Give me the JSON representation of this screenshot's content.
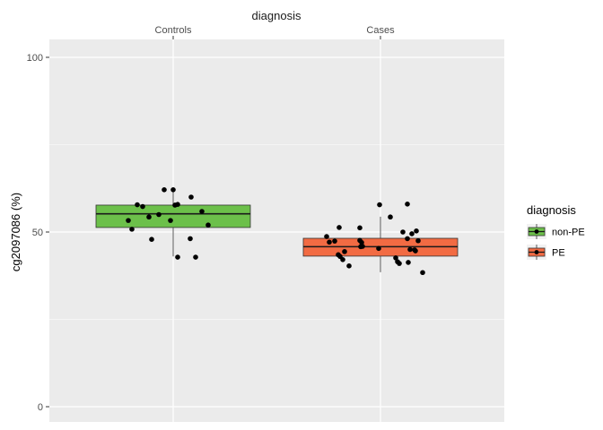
{
  "chart_data": {
    "type": "box",
    "title": "diagnosis",
    "ylabel": "cg2097086 (%)",
    "ylim": [
      0,
      100
    ],
    "yticks": [
      0,
      50,
      100
    ],
    "categories": [
      "Controls",
      "Cases"
    ],
    "legend": {
      "title": "diagnosis",
      "position": "right",
      "entries": [
        {
          "label": "non-PE",
          "color": "#6CC04A"
        },
        {
          "label": "PE",
          "color": "#F26B43"
        }
      ]
    },
    "series": [
      {
        "category": "Controls",
        "group": "non-PE",
        "color": "#6CC04A",
        "box": {
          "min": 43.0,
          "q1": 51.3,
          "median": 55.2,
          "q3": 57.7,
          "max": 61.9
        },
        "points": [
          {
            "j": -0.5,
            "y": 53.3
          },
          {
            "j": -0.46,
            "y": 50.8
          },
          {
            "j": -0.4,
            "y": 57.8
          },
          {
            "j": -0.34,
            "y": 57.3
          },
          {
            "j": -0.27,
            "y": 54.3
          },
          {
            "j": -0.24,
            "y": 47.9
          },
          {
            "j": -0.16,
            "y": 55.0
          },
          {
            "j": -0.1,
            "y": 62.1
          },
          {
            "j": -0.03,
            "y": 53.3
          },
          {
            "j": 0.0,
            "y": 62.1
          },
          {
            "j": 0.02,
            "y": 57.7
          },
          {
            "j": 0.05,
            "y": 57.9
          },
          {
            "j": 0.05,
            "y": 42.8
          },
          {
            "j": 0.19,
            "y": 48.1
          },
          {
            "j": 0.2,
            "y": 60.0
          },
          {
            "j": 0.25,
            "y": 42.8
          },
          {
            "j": 0.32,
            "y": 55.9
          },
          {
            "j": 0.39,
            "y": 52.0
          }
        ]
      },
      {
        "category": "Cases",
        "group": "PE",
        "color": "#F26B43",
        "box": {
          "min": 38.5,
          "q1": 43.1,
          "median": 45.8,
          "q3": 48.2,
          "max": 54.4
        },
        "points": [
          {
            "j": -0.6,
            "y": 48.7
          },
          {
            "j": -0.57,
            "y": 47.1
          },
          {
            "j": -0.51,
            "y": 47.4
          },
          {
            "j": -0.47,
            "y": 43.5
          },
          {
            "j": -0.46,
            "y": 51.3
          },
          {
            "j": -0.45,
            "y": 43.0
          },
          {
            "j": -0.42,
            "y": 42.1
          },
          {
            "j": -0.4,
            "y": 44.4
          },
          {
            "j": -0.35,
            "y": 40.3
          },
          {
            "j": -0.23,
            "y": 51.2
          },
          {
            "j": -0.23,
            "y": 47.6
          },
          {
            "j": -0.22,
            "y": 45.8
          },
          {
            "j": -0.21,
            "y": 47.0
          },
          {
            "j": -0.2,
            "y": 45.9
          },
          {
            "j": -0.02,
            "y": 45.3
          },
          {
            "j": -0.01,
            "y": 57.8
          },
          {
            "j": 0.11,
            "y": 54.3
          },
          {
            "j": 0.17,
            "y": 42.6
          },
          {
            "j": 0.19,
            "y": 41.5
          },
          {
            "j": 0.21,
            "y": 41.0
          },
          {
            "j": 0.25,
            "y": 50.0
          },
          {
            "j": 0.3,
            "y": 48.1
          },
          {
            "j": 0.3,
            "y": 58.0
          },
          {
            "j": 0.31,
            "y": 41.3
          },
          {
            "j": 0.33,
            "y": 45.0
          },
          {
            "j": 0.35,
            "y": 49.5
          },
          {
            "j": 0.38,
            "y": 44.9
          },
          {
            "j": 0.39,
            "y": 44.6
          },
          {
            "j": 0.4,
            "y": 50.3
          },
          {
            "j": 0.42,
            "y": 47.5
          },
          {
            "j": 0.47,
            "y": 38.4
          }
        ]
      }
    ]
  }
}
